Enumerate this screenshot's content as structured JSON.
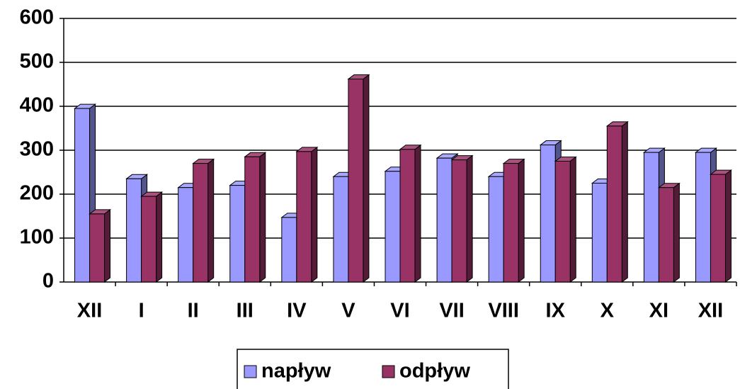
{
  "chart_data": {
    "type": "bar3d",
    "categories": [
      "XII",
      "I",
      "II",
      "III",
      "IV",
      "V",
      "VI",
      "VII",
      "VIII",
      "IX",
      "X",
      "XI",
      "XII"
    ],
    "series": [
      {
        "name": "napływ",
        "color": "#9999ff",
        "values": [
          395,
          235,
          215,
          220,
          147,
          240,
          252,
          282,
          240,
          312,
          225,
          295,
          295
        ]
      },
      {
        "name": "odpływ",
        "color": "#993366",
        "values": [
          155,
          195,
          270,
          285,
          297,
          462,
          302,
          278,
          270,
          275,
          355,
          215,
          245
        ]
      }
    ],
    "ylim": [
      0,
      600
    ],
    "yticks": [
      0,
      100,
      200,
      300,
      400,
      500,
      600
    ],
    "grid": true,
    "legend": "bottom"
  }
}
